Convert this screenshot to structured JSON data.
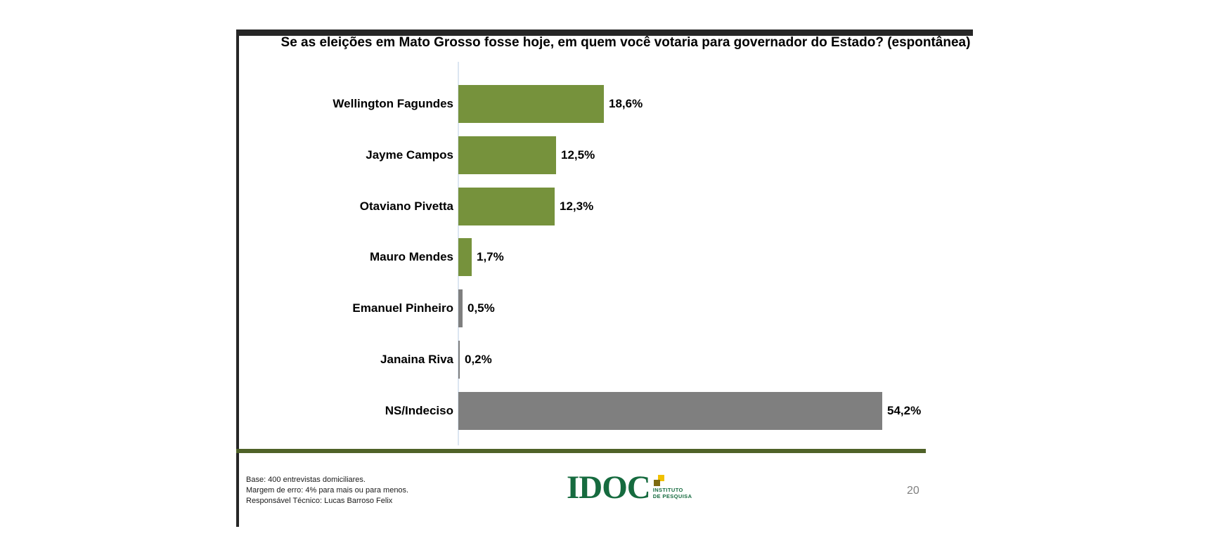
{
  "chart_data": {
    "type": "bar",
    "orientation": "horizontal",
    "title": "Se as eleições em Mato Grosso fosse hoje, em quem você votaria para governador do Estado? (espontânea)",
    "categories": [
      "Wellington Fagundes",
      "Jayme Campos",
      "Otaviano Pivetta",
      "Mauro Mendes",
      "Emanuel Pinheiro",
      "Janaina Riva",
      "NS/Indeciso"
    ],
    "values": [
      18.6,
      12.5,
      12.3,
      1.7,
      0.5,
      0.2,
      54.2
    ],
    "value_labels": [
      "18,6%",
      "12,5%",
      "12,3%",
      "1,7%",
      "0,5%",
      "0,2%",
      "54,2%"
    ],
    "bar_colors": [
      "#76923c",
      "#76923c",
      "#76923c",
      "#76923c",
      "#7f7f7f",
      "#7f7f7f",
      "#7f7f7f"
    ],
    "xlim": [
      0,
      60
    ],
    "xlabel": "",
    "ylabel": "",
    "grid": false,
    "legend": false,
    "data_labels": true
  },
  "footer": {
    "lines": [
      "Base: 400 entrevistas domiciliares.",
      "Margem de erro: 4% para mais ou para menos.",
      "Responsável Técnico: Lucas Barroso Felix"
    ],
    "page_number": "20"
  },
  "logo": {
    "name": "IDOC",
    "subtitle_line1": "INSTITUTO",
    "subtitle_line2": "DE PESQUISA"
  },
  "colors": {
    "bar_green": "#76923c",
    "bar_gray": "#7f7f7f",
    "footer_rule": "#4f6228",
    "frame": "#262626",
    "logo_green": "#166b3f",
    "axis_line": "#dce6f1",
    "page_number_gray": "#808080"
  }
}
